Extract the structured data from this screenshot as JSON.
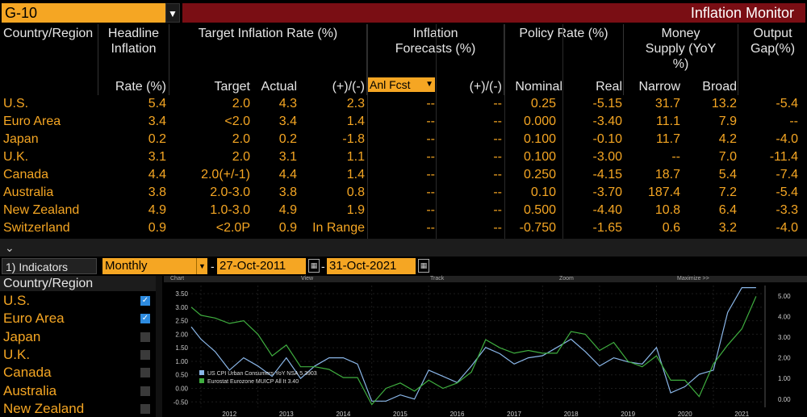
{
  "header": {
    "security": "G-10",
    "dropdown_glyph": "▼",
    "title": "Inflation Monitor"
  },
  "columns": {
    "country": "Country/Region",
    "headline": "Headline Inflation",
    "target_group": "Target Inflation Rate (%)",
    "forecast_group": "Inflation Forecasts (%)",
    "policy_group": "Policy Rate (%)",
    "money_group": "Money Supply (YoY %)",
    "output_group": "Output Gap(%)",
    "sub": {
      "rate": "Rate (%)",
      "target": "Target",
      "actual": "Actual",
      "diff": "(+)/(-)",
      "anl": "Anl Fcst",
      "fdiff": "(+)/(-)",
      "nominal": "Nominal",
      "real": "Real",
      "narrow": "Narrow",
      "broad": "Broad"
    }
  },
  "rows": [
    {
      "country": "U.S.",
      "rate": "5.4",
      "target": "2.0",
      "actual": "4.3",
      "diff": "2.3",
      "fc": "--",
      "fd": "--",
      "nominal": "0.25",
      "real": "-5.15",
      "narrow": "31.7",
      "broad": "13.2",
      "gap": "-5.4"
    },
    {
      "country": "Euro Area",
      "rate": "3.4",
      "target": "<2.0",
      "actual": "3.4",
      "diff": "1.4",
      "fc": "--",
      "fd": "--",
      "nominal": "0.000",
      "real": "-3.40",
      "narrow": "11.1",
      "broad": "7.9",
      "gap": "--"
    },
    {
      "country": "Japan",
      "rate": "0.2",
      "target": "2.0",
      "actual": "0.2",
      "diff": "-1.8",
      "fc": "--",
      "fd": "--",
      "nominal": "0.100",
      "real": "-0.10",
      "narrow": "11.7",
      "broad": "4.2",
      "gap": "-4.0"
    },
    {
      "country": "U.K.",
      "rate": "3.1",
      "target": "2.0",
      "actual": "3.1",
      "diff": "1.1",
      "fc": "--",
      "fd": "--",
      "nominal": "0.100",
      "real": "-3.00",
      "narrow": "--",
      "broad": "7.0",
      "gap": "-11.4"
    },
    {
      "country": "Canada",
      "rate": "4.4",
      "target": "2.0(+/-1)",
      "actual": "4.4",
      "diff": "1.4",
      "fc": "--",
      "fd": "--",
      "nominal": "0.250",
      "real": "-4.15",
      "narrow": "18.7",
      "broad": "5.4",
      "gap": "-7.4"
    },
    {
      "country": "Australia",
      "rate": "3.8",
      "target": "2.0-3.0",
      "actual": "3.8",
      "diff": "0.8",
      "fc": "--",
      "fd": "--",
      "nominal": "0.10",
      "real": "-3.70",
      "narrow": "187.4",
      "broad": "7.2",
      "gap": "-5.4"
    },
    {
      "country": "New Zealand",
      "rate": "4.9",
      "target": "1.0-3.0",
      "actual": "4.9",
      "diff": "1.9",
      "fc": "--",
      "fd": "--",
      "nominal": "0.500",
      "real": "-4.40",
      "narrow": "10.8",
      "broad": "6.4",
      "gap": "-3.3"
    },
    {
      "country": "Switzerland",
      "rate": "0.9",
      "target": "<2.0P",
      "actual": "0.9",
      "diff": "In Range",
      "fc": "--",
      "fd": "--",
      "nominal": "-0.750",
      "real": "-1.65",
      "narrow": "0.6",
      "broad": "3.2",
      "gap": "-4.0"
    }
  ],
  "divider": "⌄",
  "indicators": {
    "button": "1) Indicators",
    "frequency": "Monthly",
    "start": "27-Oct-2011",
    "end": "31-Oct-2021",
    "dash": "-",
    "cal_glyph": "▦"
  },
  "country_list": {
    "header": "Country/Region",
    "items": [
      {
        "name": "U.S.",
        "checked": true
      },
      {
        "name": "Euro Area",
        "checked": true
      },
      {
        "name": "Japan",
        "checked": false
      },
      {
        "name": "U.K.",
        "checked": false
      },
      {
        "name": "Canada",
        "checked": false
      },
      {
        "name": "Australia",
        "checked": false
      },
      {
        "name": "New Zealand",
        "checked": false
      }
    ]
  },
  "chart_toolbar": {
    "chart": "Chart",
    "view": "View",
    "track": "Track",
    "zoom": "Zoom",
    "maximize": "Maximize >>"
  },
  "chart_data": {
    "type": "line",
    "x_labels": [
      "2012",
      "2013",
      "2014",
      "2015",
      "2016",
      "2017",
      "2018",
      "2019",
      "2020",
      "2021"
    ],
    "left_ticks": [
      "3.50",
      "3.00",
      "2.50",
      "2.00",
      "1.50",
      "1.00",
      "0.50",
      "0.00",
      "-0.50"
    ],
    "right_ticks": [
      "5.00",
      "4.00",
      "3.00",
      "2.00",
      "1.00",
      "0.00"
    ],
    "left_ylim": [
      -0.7,
      3.8
    ],
    "right_ylim": [
      -0.4,
      5.5
    ],
    "series": [
      {
        "name": "US CPI Urban Consumers YoY NSA",
        "last": "5.3903",
        "color": "#8ab6e8",
        "axis": "right",
        "x": [
          2011.83,
          2012.0,
          2012.25,
          2012.5,
          2012.75,
          2013.0,
          2013.25,
          2013.5,
          2013.75,
          2014.0,
          2014.25,
          2014.5,
          2014.75,
          2015.0,
          2015.25,
          2015.5,
          2015.75,
          2016.0,
          2016.25,
          2016.5,
          2016.75,
          2017.0,
          2017.25,
          2017.5,
          2017.75,
          2018.0,
          2018.25,
          2018.5,
          2018.75,
          2019.0,
          2019.25,
          2019.5,
          2019.75,
          2020.0,
          2020.25,
          2020.5,
          2020.75,
          2021.0,
          2021.25,
          2021.5,
          2021.75
        ],
        "y": [
          3.5,
          2.9,
          2.3,
          1.4,
          2.0,
          1.6,
          1.1,
          2.0,
          1.0,
          1.6,
          2.0,
          2.0,
          1.7,
          -0.1,
          -0.1,
          0.2,
          0.0,
          1.4,
          1.1,
          0.8,
          1.6,
          2.5,
          2.2,
          1.7,
          2.0,
          2.1,
          2.5,
          2.9,
          2.3,
          1.6,
          2.0,
          1.8,
          1.7,
          2.5,
          0.3,
          0.6,
          1.2,
          1.4,
          4.2,
          5.4,
          5.4
        ]
      },
      {
        "name": "Eurostat Eurozone MUICP All It",
        "last": "3.40",
        "color": "#3fae3f",
        "axis": "left",
        "x": [
          2011.83,
          2012.0,
          2012.25,
          2012.5,
          2012.75,
          2013.0,
          2013.25,
          2013.5,
          2013.75,
          2014.0,
          2014.25,
          2014.5,
          2014.75,
          2015.0,
          2015.25,
          2015.5,
          2015.75,
          2016.0,
          2016.25,
          2016.5,
          2016.75,
          2017.0,
          2017.25,
          2017.5,
          2017.75,
          2018.0,
          2018.25,
          2018.5,
          2018.75,
          2019.0,
          2019.25,
          2019.5,
          2019.75,
          2020.0,
          2020.25,
          2020.5,
          2020.75,
          2021.0,
          2021.25,
          2021.5,
          2021.75
        ],
        "y": [
          3.0,
          2.7,
          2.6,
          2.4,
          2.5,
          2.0,
          1.2,
          1.6,
          0.8,
          0.8,
          0.7,
          0.4,
          0.4,
          -0.6,
          0.0,
          0.2,
          -0.1,
          0.3,
          0.0,
          0.2,
          0.6,
          1.8,
          1.5,
          1.3,
          1.4,
          1.3,
          1.3,
          2.1,
          2.0,
          1.4,
          1.7,
          1.0,
          0.8,
          1.2,
          0.3,
          0.3,
          -0.3,
          0.9,
          1.6,
          2.2,
          3.4
        ]
      }
    ]
  }
}
